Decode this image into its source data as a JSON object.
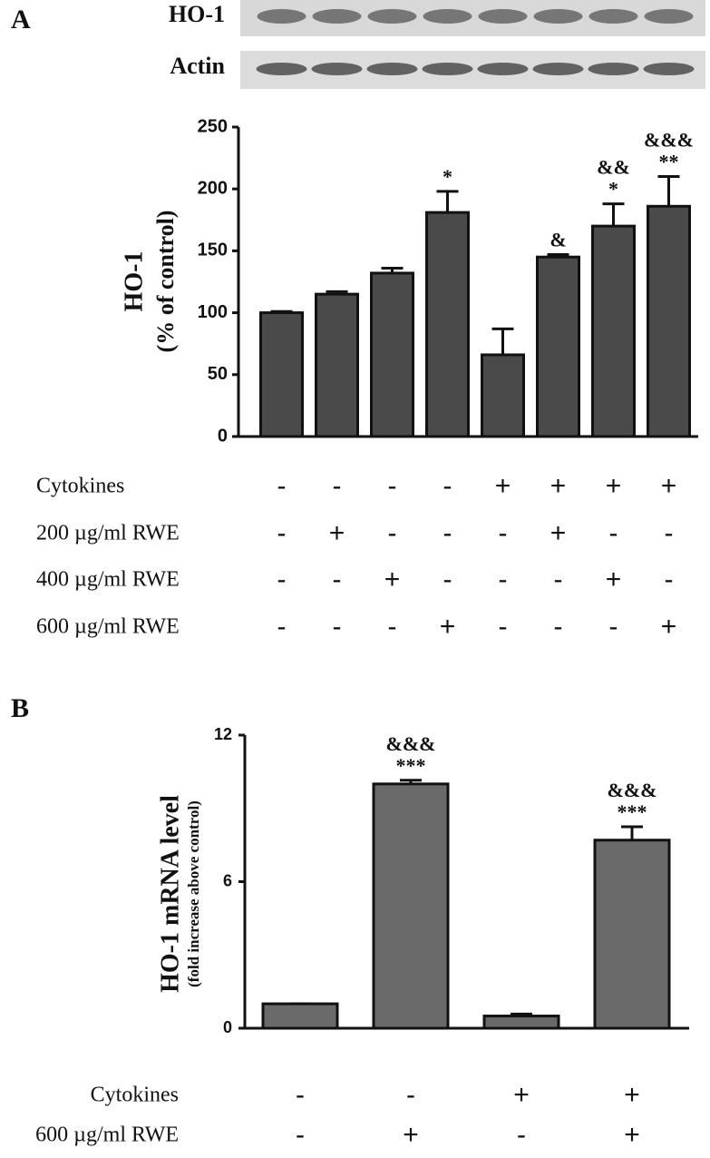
{
  "chart_data": [
    {
      "type": "bar",
      "panel": "A",
      "blot_labels": [
        "HO-1",
        "Actin"
      ],
      "y_label": [
        "HO-1",
        "(% of control)"
      ],
      "values": [
        100,
        115,
        132,
        181,
        66,
        145,
        170,
        186
      ],
      "errors": [
        1,
        2,
        4,
        17,
        21,
        2,
        18,
        24
      ],
      "annotations": [
        [],
        [],
        [],
        [
          "*"
        ],
        [],
        [
          "&"
        ],
        [
          "&&",
          "*"
        ],
        [
          "&&&",
          "**"
        ]
      ],
      "color": "#4a4a4a",
      "ylim": [
        0,
        250
      ],
      "yticks": [
        0,
        50,
        100,
        150,
        200,
        250
      ],
      "conditions": [
        {
          "label": "Cytokines",
          "signs": [
            "-",
            "-",
            "-",
            "-",
            "+",
            "+",
            "+",
            "+"
          ]
        },
        {
          "label": "200 µg/ml RWE",
          "signs": [
            "-",
            "+",
            "-",
            "-",
            "-",
            "+",
            "-",
            "-"
          ]
        },
        {
          "label": "400 µg/ml RWE",
          "signs": [
            "-",
            "-",
            "+",
            "-",
            "-",
            "-",
            "+",
            "-"
          ]
        },
        {
          "label": "600 µg/ml RWE",
          "signs": [
            "-",
            "-",
            "-",
            "+",
            "-",
            "-",
            "-",
            "+"
          ]
        }
      ]
    },
    {
      "type": "bar",
      "panel": "B",
      "y_label": [
        "HO-1 mRNA level",
        "(fold increase above control)"
      ],
      "values": [
        1.0,
        10.0,
        0.5,
        7.7
      ],
      "errors": [
        0,
        0.15,
        0.08,
        0.55
      ],
      "annotations": [
        [],
        [
          "&&&",
          "***"
        ],
        [],
        [
          "&&&",
          "***"
        ]
      ],
      "color": "#6a6a6a",
      "ylim": [
        0,
        12
      ],
      "yticks": [
        0,
        6,
        12
      ],
      "conditions": [
        {
          "label": "Cytokines",
          "signs": [
            "-",
            "-",
            "+",
            "+"
          ]
        },
        {
          "label": "600 µg/ml RWE",
          "signs": [
            "-",
            "+",
            "-",
            "+"
          ]
        }
      ]
    }
  ]
}
